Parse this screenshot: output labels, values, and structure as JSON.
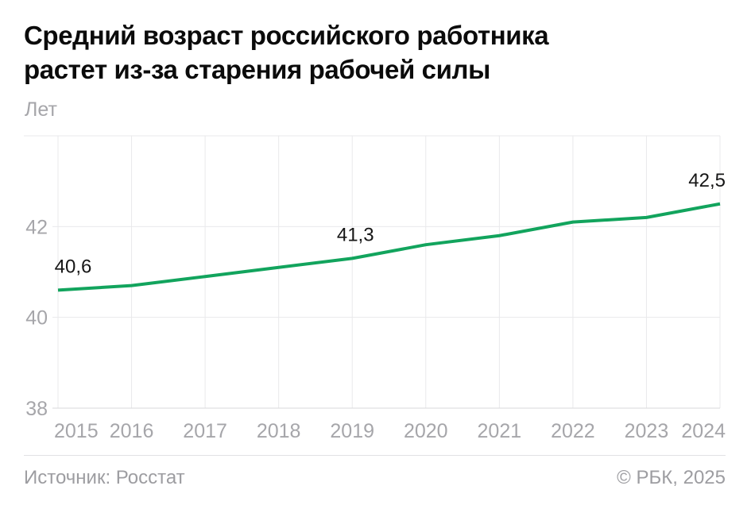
{
  "page": {
    "title_line1": "Средний возраст российского работника",
    "title_line2": "растет из-за старения рабочей силы",
    "units_label": "Лет"
  },
  "footer": {
    "source": "Источник: Росстат",
    "copyright": "© РБК, 2025"
  },
  "chart_data": {
    "type": "line",
    "title": "Средний возраст российского работника растет из-за старения рабочей силы",
    "ylabel": "Лет",
    "xlabel": "",
    "x": [
      2015,
      2016,
      2017,
      2018,
      2019,
      2020,
      2021,
      2022,
      2023,
      2024
    ],
    "values": [
      40.6,
      40.7,
      40.9,
      41.1,
      41.3,
      41.6,
      41.8,
      42.1,
      42.2,
      42.5
    ],
    "yticks": [
      38,
      40,
      42
    ],
    "ylim": [
      38,
      44
    ],
    "grid": true,
    "legend_position": "none",
    "point_labels": [
      {
        "x": 2015,
        "text": "40,6"
      },
      {
        "x": 2019,
        "text": "41,3"
      },
      {
        "x": 2024,
        "text": "42,5"
      }
    ]
  },
  "colors": {
    "line": "#12a45d",
    "grid": "#e9e9eb",
    "axis": "#d9d9db",
    "muted_text": "#a6a6aa",
    "footer_text": "#9d9da1",
    "title_text": "#0b0b0b",
    "label_text": "#161616"
  }
}
